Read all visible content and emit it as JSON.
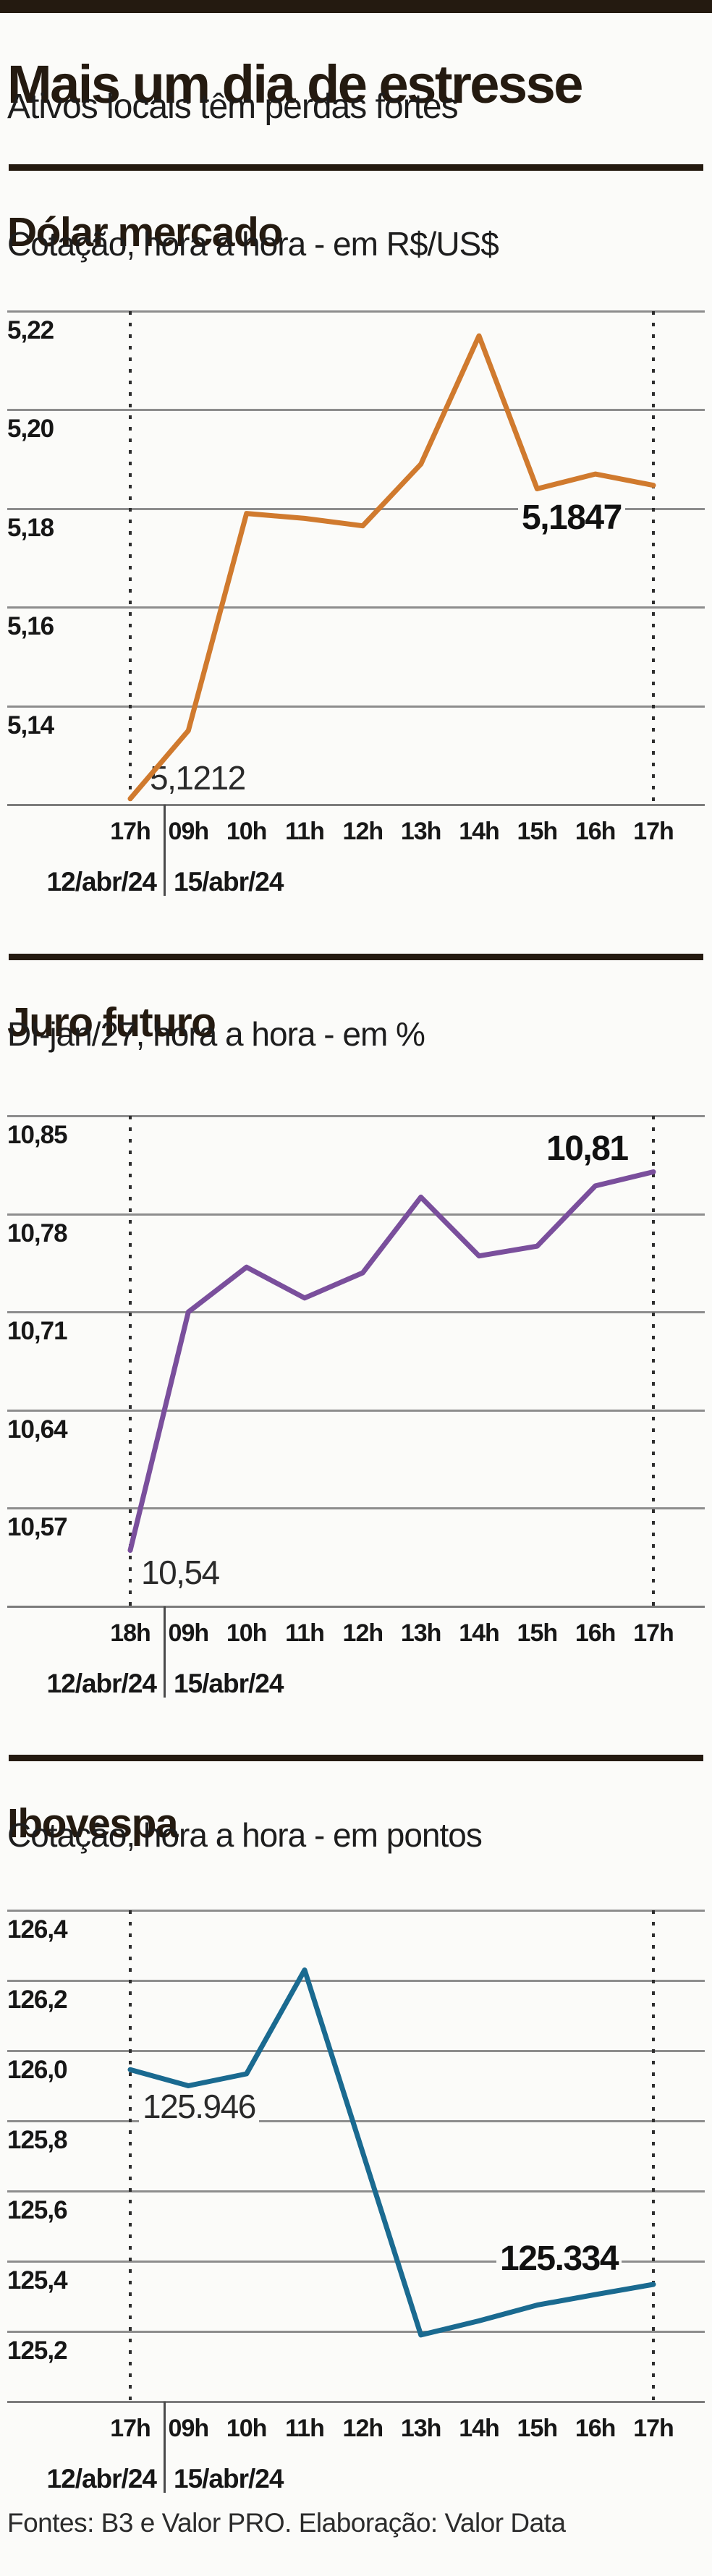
{
  "page": {
    "title": "Mais um dia de estresse",
    "subtitle": "Ativos locais têm perdas fortes",
    "footer": "Fontes: B3 e Valor PRO. Elaboração: Valor Data",
    "accent_color": "#241a10",
    "gridline_color": "#8d8d8d"
  },
  "chart_data": [
    {
      "type": "line",
      "title": "Dólar mercado",
      "subtitle": "Cotação, hora a hora - em R$/US$",
      "line_color": "#d07a2e",
      "categories": [
        "17h",
        "09h",
        "10h",
        "11h",
        "12h",
        "13h",
        "14h",
        "15h",
        "16h",
        "17h"
      ],
      "values": [
        5.1212,
        5.135,
        5.179,
        5.178,
        5.1765,
        5.189,
        5.215,
        5.184,
        5.187,
        5.1847
      ],
      "date_groups": [
        "12/abr/24",
        "15/abr/24"
      ],
      "date_divider_after_index": 0,
      "y_tick_labels": [
        "5,22",
        "5,20",
        "5,18",
        "5,16",
        "5,14"
      ],
      "y_top": 5.22,
      "y_tick_step": 0.02,
      "ylim": [
        5.12,
        5.22
      ],
      "grid": true,
      "legend": false,
      "start_value_label": "5,1212",
      "end_value_label": "5,1847"
    },
    {
      "type": "line",
      "title": "Juro futuro",
      "subtitle": "DI-jan/27, hora a hora - em %",
      "line_color": "#7a4f9c",
      "categories": [
        "18h",
        "09h",
        "10h",
        "11h",
        "12h",
        "13h",
        "14h",
        "15h",
        "16h",
        "17h"
      ],
      "values": [
        10.54,
        10.71,
        10.742,
        10.72,
        10.738,
        10.792,
        10.75,
        10.757,
        10.8,
        10.81
      ],
      "date_groups": [
        "12/abr/24",
        "15/abr/24"
      ],
      "date_divider_after_index": 0,
      "y_tick_labels": [
        "10,85",
        "10,78",
        "10,71",
        "10,64",
        "10,57"
      ],
      "y_top": 10.85,
      "y_tick_step": 0.07,
      "ylim": [
        10.5,
        10.85
      ],
      "grid": true,
      "legend": false,
      "start_value_label": "10,54",
      "end_value_label": "10,81"
    },
    {
      "type": "line",
      "title": "Ibovespa",
      "subtitle": "Cotação, hora a hora -  em pontos",
      "line_color": "#1a6a90",
      "categories": [
        "17h",
        "09h",
        "10h",
        "11h",
        "12h",
        "13h",
        "14h",
        "15h",
        "16h",
        "17h"
      ],
      "values": [
        125.946,
        125.9,
        125.934,
        126.23,
        125.71,
        125.19,
        125.23,
        125.275,
        125.305,
        125.334
      ],
      "date_groups": [
        "12/abr/24",
        "15/abr/24"
      ],
      "date_divider_after_index": 0,
      "y_tick_labels": [
        "126,4",
        "126,2",
        "126,0",
        "125,8",
        "125,6",
        "125,4",
        "125,2"
      ],
      "y_top": 126.4,
      "y_tick_step": 0.2,
      "ylim": [
        125.0,
        126.4
      ],
      "grid": true,
      "legend": false,
      "start_value_label": "125.946",
      "end_value_label": "125.334"
    }
  ]
}
